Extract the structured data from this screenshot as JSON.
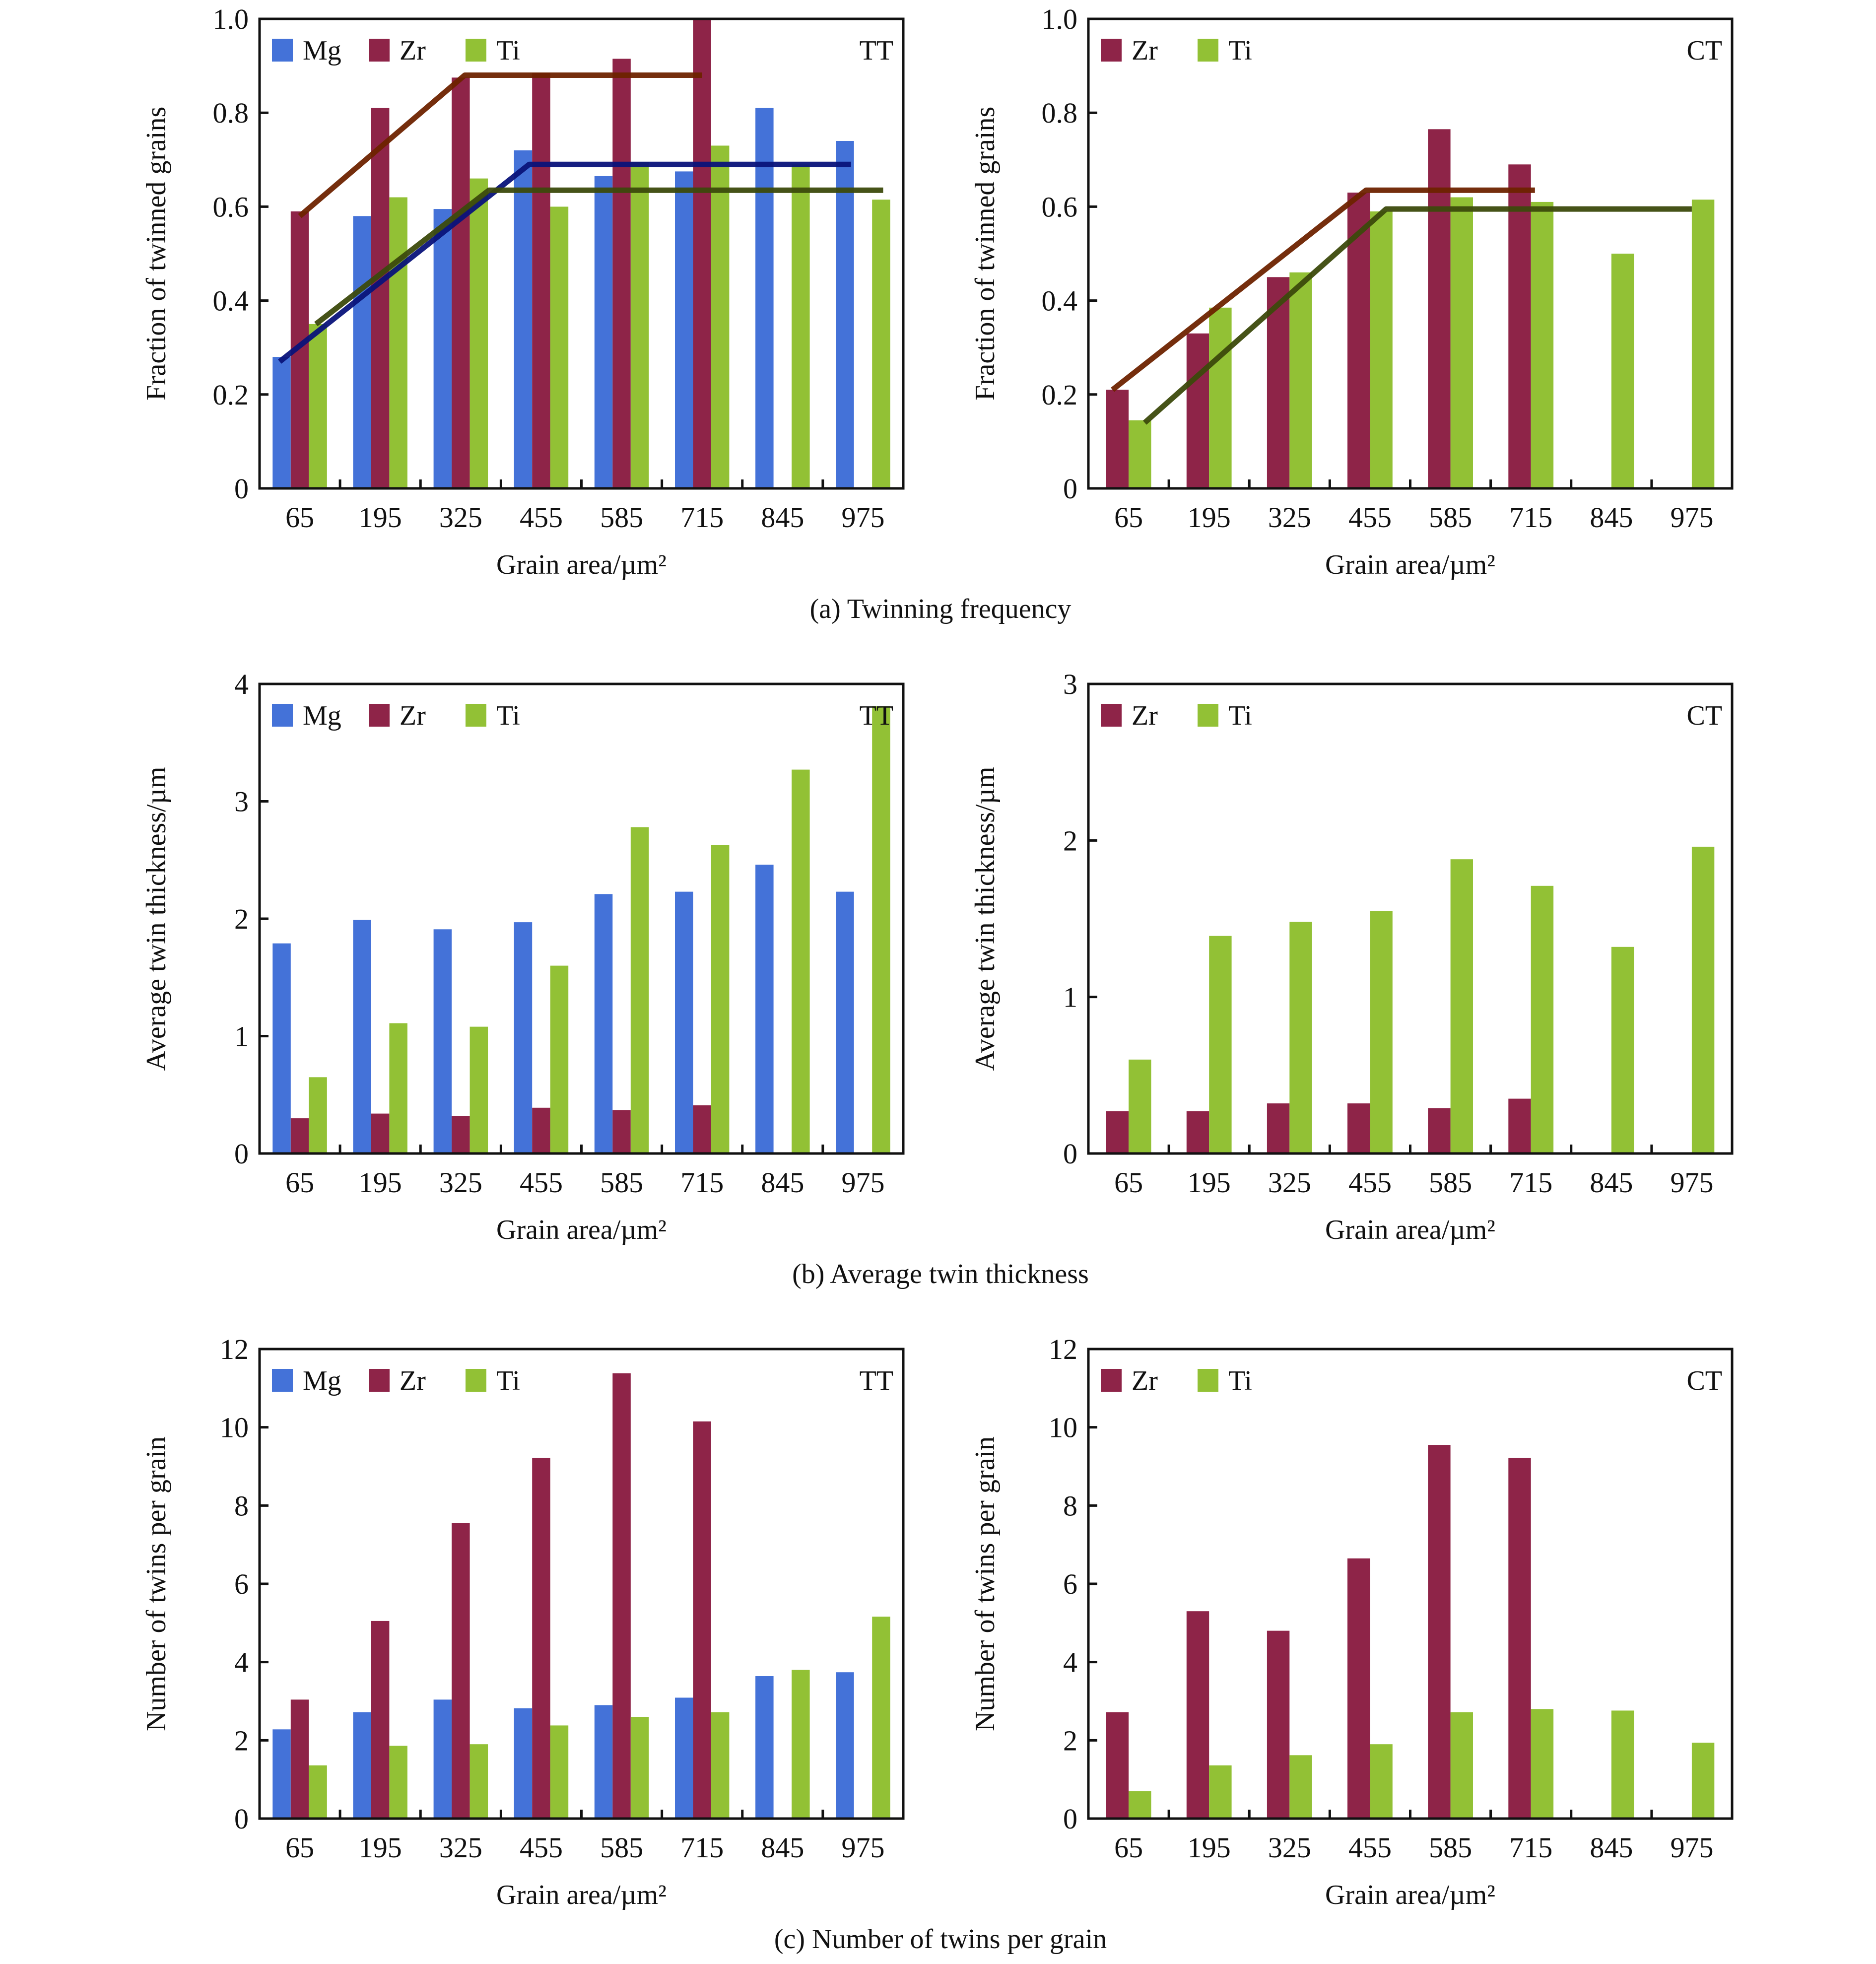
{
  "colors": {
    "Mg": "#4472d8",
    "Zr": "#8e2448",
    "Ti": "#92c135",
    "trend_Zr": "#6e2300",
    "trend_Mg": "#0a137a",
    "trend_Ti": "#3c4a0c"
  },
  "captions": {
    "a": "(a) Twinning frequency",
    "b": "(b) Average twin thickness",
    "c": "(c) Number of twins per grain"
  },
  "chart_data": [
    {
      "id": "a-tt",
      "type": "bar",
      "panel": "a",
      "mode_label": "TT",
      "xlabel": "Grain area/µm²",
      "ylabel": "Fraction of twinned grains",
      "categories": [
        "65",
        "195",
        "325",
        "455",
        "585",
        "715",
        "845",
        "975"
      ],
      "ylim": [
        0,
        1.0
      ],
      "yticks": [
        "0",
        "0.2",
        "0.4",
        "0.6",
        "0.8",
        "1.0"
      ],
      "ytick_values": [
        0,
        0.2,
        0.4,
        0.6,
        0.8,
        1.0
      ],
      "legend": "top-left",
      "series": [
        {
          "name": "Mg",
          "values": [
            0.28,
            0.58,
            0.595,
            0.72,
            0.665,
            0.675,
            0.81,
            0.74
          ]
        },
        {
          "name": "Zr",
          "values": [
            0.59,
            0.81,
            0.875,
            0.885,
            0.915,
            1.0,
            null,
            null
          ]
        },
        {
          "name": "Ti",
          "values": [
            0.35,
            0.62,
            0.66,
            0.6,
            0.695,
            0.73,
            0.69,
            0.615
          ]
        }
      ],
      "trend_lines": [
        {
          "name": "Zr",
          "points": [
            [
              0.0,
              0.58
            ],
            [
              2.05,
              0.88
            ],
            [
              5.0,
              0.88
            ]
          ]
        },
        {
          "name": "Mg",
          "points": [
            [
              -0.25,
              0.27
            ],
            [
              2.85,
              0.69
            ],
            [
              6.85,
              0.69
            ]
          ]
        },
        {
          "name": "Ti",
          "points": [
            [
              0.2,
              0.35
            ],
            [
              2.35,
              0.635
            ],
            [
              7.25,
              0.635
            ]
          ]
        }
      ]
    },
    {
      "id": "a-ct",
      "type": "bar",
      "panel": "a",
      "mode_label": "CT",
      "xlabel": "Grain area/µm²",
      "ylabel": "Fraction of twinned grains",
      "categories": [
        "65",
        "195",
        "325",
        "455",
        "585",
        "715",
        "845",
        "975"
      ],
      "ylim": [
        0,
        1.0
      ],
      "yticks": [
        "0",
        "0.2",
        "0.4",
        "0.6",
        "0.8",
        "1.0"
      ],
      "ytick_values": [
        0,
        0.2,
        0.4,
        0.6,
        0.8,
        1.0
      ],
      "legend": "top-left",
      "series": [
        {
          "name": "Zr",
          "values": [
            0.21,
            0.33,
            0.45,
            0.63,
            0.765,
            0.69,
            null,
            null
          ]
        },
        {
          "name": "Ti",
          "values": [
            0.145,
            0.385,
            0.46,
            0.59,
            0.62,
            0.61,
            0.5,
            0.615
          ]
        }
      ],
      "trend_lines": [
        {
          "name": "Zr",
          "points": [
            [
              -0.2,
              0.21
            ],
            [
              2.95,
              0.635
            ],
            [
              5.05,
              0.635
            ]
          ]
        },
        {
          "name": "Ti",
          "points": [
            [
              0.2,
              0.14
            ],
            [
              3.2,
              0.595
            ],
            [
              7.0,
              0.595
            ]
          ]
        }
      ]
    },
    {
      "id": "b-tt",
      "type": "bar",
      "panel": "b",
      "mode_label": "TT",
      "xlabel": "Grain area/µm²",
      "ylabel": "Average twin thickness/µm",
      "categories": [
        "65",
        "195",
        "325",
        "455",
        "585",
        "715",
        "845",
        "975"
      ],
      "ylim": [
        0,
        4
      ],
      "yticks": [
        "0",
        "1",
        "2",
        "3",
        "4"
      ],
      "ytick_values": [
        0,
        1,
        2,
        3,
        4
      ],
      "legend": "top-left",
      "series": [
        {
          "name": "Mg",
          "values": [
            1.79,
            1.99,
            1.91,
            1.97,
            2.21,
            2.23,
            2.46,
            2.23
          ]
        },
        {
          "name": "Zr",
          "values": [
            0.3,
            0.34,
            0.32,
            0.39,
            0.37,
            0.41,
            null,
            null
          ]
        },
        {
          "name": "Ti",
          "values": [
            0.65,
            1.11,
            1.08,
            1.6,
            2.78,
            2.63,
            3.27,
            3.81
          ]
        }
      ],
      "trend_lines": []
    },
    {
      "id": "b-ct",
      "type": "bar",
      "panel": "b",
      "mode_label": "CT",
      "xlabel": "Grain area/µm²",
      "ylabel": "Average twin thickness/µm",
      "categories": [
        "65",
        "195",
        "325",
        "455",
        "585",
        "715",
        "845",
        "975"
      ],
      "ylim": [
        0,
        3
      ],
      "yticks": [
        "0",
        "1",
        "2",
        "3"
      ],
      "ytick_values": [
        0,
        1,
        2,
        3
      ],
      "legend": "top-left",
      "series": [
        {
          "name": "Zr",
          "values": [
            0.27,
            0.27,
            0.32,
            0.32,
            0.29,
            0.35,
            null,
            null
          ]
        },
        {
          "name": "Ti",
          "values": [
            0.6,
            1.39,
            1.48,
            1.55,
            1.88,
            1.71,
            1.32,
            1.96
          ]
        }
      ],
      "trend_lines": []
    },
    {
      "id": "c-tt",
      "type": "bar",
      "panel": "c",
      "mode_label": "TT",
      "xlabel": "Grain area/µm²",
      "ylabel": "Number of twins  per grain",
      "categories": [
        "65",
        "195",
        "325",
        "455",
        "585",
        "715",
        "845",
        "975"
      ],
      "ylim": [
        0,
        12
      ],
      "yticks": [
        "0",
        "2",
        "4",
        "6",
        "8",
        "10",
        "12"
      ],
      "ytick_values": [
        0,
        2,
        4,
        6,
        8,
        10,
        12
      ],
      "legend": "top-left",
      "series": [
        {
          "name": "Mg",
          "values": [
            2.28,
            2.72,
            3.04,
            2.82,
            2.9,
            3.09,
            3.64,
            3.74
          ]
        },
        {
          "name": "Zr",
          "values": [
            3.04,
            5.05,
            7.55,
            9.22,
            11.38,
            10.15,
            null,
            null
          ]
        },
        {
          "name": "Ti",
          "values": [
            1.36,
            1.86,
            1.9,
            2.38,
            2.6,
            2.72,
            3.8,
            5.16
          ]
        }
      ],
      "trend_lines": []
    },
    {
      "id": "c-ct",
      "type": "bar",
      "panel": "c",
      "mode_label": "CT",
      "xlabel": "Grain area/µm²",
      "ylabel": "Number of twins per grain",
      "categories": [
        "65",
        "195",
        "325",
        "455",
        "585",
        "715",
        "845",
        "975"
      ],
      "ylim": [
        0,
        12
      ],
      "yticks": [
        "0",
        "2",
        "4",
        "6",
        "8",
        "10",
        "12"
      ],
      "ytick_values": [
        0,
        2,
        4,
        6,
        8,
        10,
        12
      ],
      "legend": "top-left",
      "series": [
        {
          "name": "Zr",
          "values": [
            2.72,
            5.3,
            4.8,
            6.65,
            9.55,
            9.22,
            null,
            null
          ]
        },
        {
          "name": "Ti",
          "values": [
            0.7,
            1.36,
            1.62,
            1.9,
            2.72,
            2.8,
            2.76,
            1.94
          ]
        }
      ],
      "trend_lines": []
    }
  ]
}
